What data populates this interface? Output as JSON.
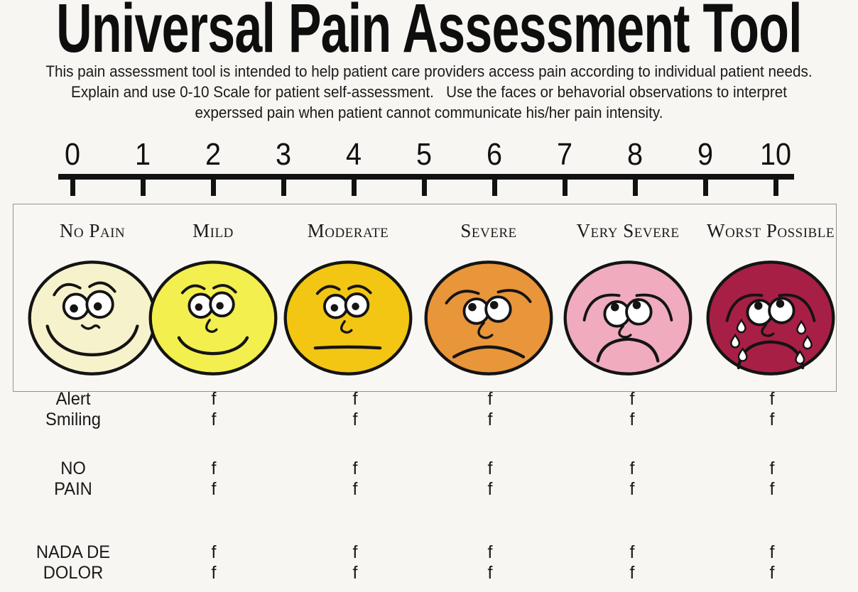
{
  "header": {
    "title": "Universal Pain Assessment Tool",
    "subtitle_lines": [
      "This pain assessment tool is intended to help patient care providers access pain according to individual patient needs.",
      "Explain and use 0-10 Scale for patient self-assessment.   Use the faces or behavorial observations to interpret",
      "experssed pain when patient cannot communicate his/her pain intensity."
    ]
  },
  "scale": {
    "min": 0,
    "max": 10,
    "values": [
      "0",
      "1",
      "2",
      "3",
      "4",
      "5",
      "6",
      "7",
      "8",
      "9",
      "10"
    ]
  },
  "faces": [
    {
      "label": "No Pain",
      "icon": "wide-smile-face-icon",
      "color": "#F6F2CB",
      "outline": "#141414",
      "expression": "wide-smile"
    },
    {
      "label": "Mild",
      "icon": "smile-face-icon",
      "color": "#F3EF4E",
      "outline": "#141414",
      "expression": "smile"
    },
    {
      "label": "Moderate",
      "icon": "neutral-face-icon",
      "color": "#F2C613",
      "outline": "#141414",
      "expression": "neutral"
    },
    {
      "label": "Severe",
      "icon": "frown-face-icon",
      "color": "#E9953A",
      "outline": "#141414",
      "expression": "frown"
    },
    {
      "label": "Very Severe",
      "icon": "sad-face-icon",
      "color": "#F0ABBF",
      "outline": "#141414",
      "expression": "sad"
    },
    {
      "label": "Worst Possible",
      "icon": "crying-face-icon",
      "color": "#A81F45",
      "outline": "#141414",
      "expression": "crying"
    }
  ],
  "behavior_table": {
    "mark": "f",
    "mark_columns": 5,
    "row_groups": [
      {
        "labels": [
          "Alert",
          "Smiling"
        ]
      },
      {
        "labels": [
          "NO",
          "PAIN"
        ]
      },
      {
        "labels": [
          "NADA DE",
          "DOLOR"
        ]
      }
    ]
  }
}
